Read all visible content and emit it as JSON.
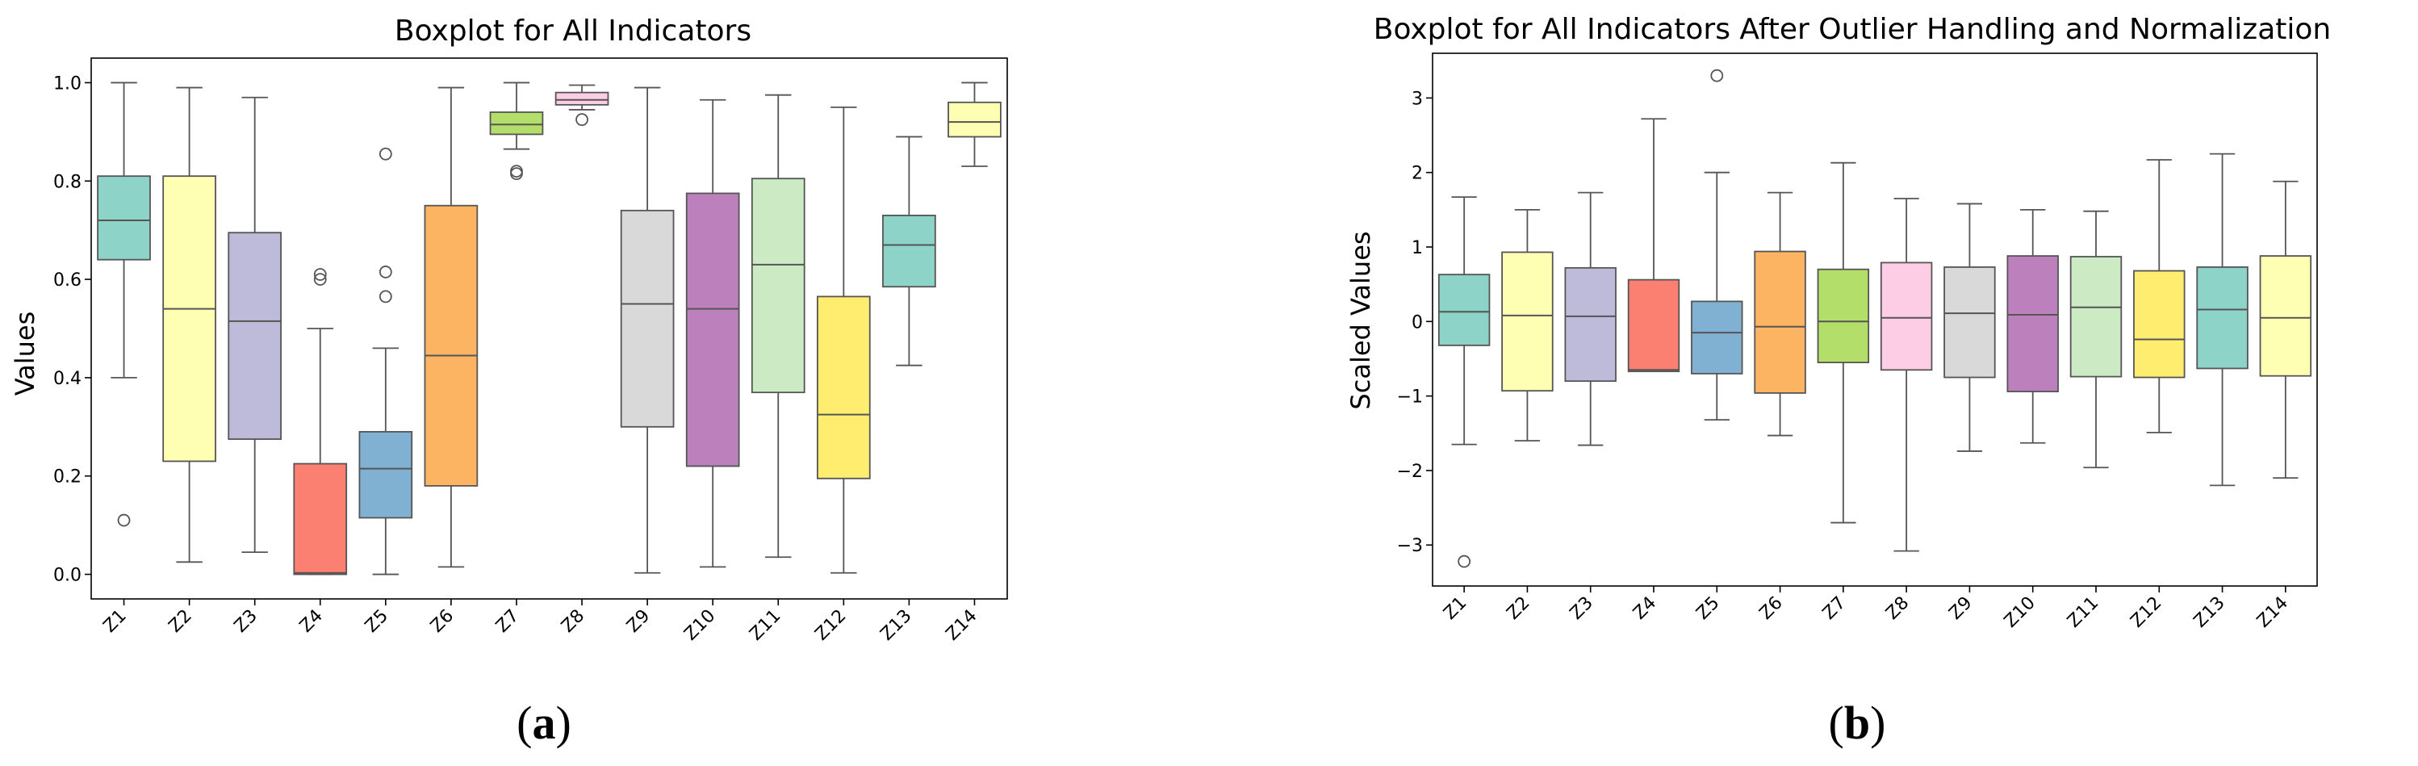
{
  "figure": {
    "panel_labels": [
      {
        "open": "(",
        "letter": "a",
        "close": ")"
      },
      {
        "open": "(",
        "letter": "b",
        "close": ")"
      }
    ]
  },
  "chart_data": [
    {
      "type": "boxplot",
      "title": "Boxplot for All Indicators",
      "xlabel": "",
      "ylabel": "Values",
      "ylim": [
        -0.05,
        1.05
      ],
      "yticks": [
        0.0,
        0.2,
        0.4,
        0.6,
        0.8,
        1.0
      ],
      "ytick_labels": [
        "0.0",
        "0.2",
        "0.4",
        "0.6",
        "0.8",
        "1.0"
      ],
      "grid": false,
      "categories": [
        "Z1",
        "Z2",
        "Z3",
        "Z4",
        "Z5",
        "Z6",
        "Z7",
        "Z8",
        "Z9",
        "Z10",
        "Z11",
        "Z12",
        "Z13",
        "Z14"
      ],
      "boxes": [
        {
          "whislo": 0.4,
          "q1": 0.64,
          "med": 0.72,
          "q3": 0.81,
          "whishi": 1.0,
          "fliers": [
            0.11
          ],
          "color": "#8dd3c7"
        },
        {
          "whislo": 0.025,
          "q1": 0.23,
          "med": 0.54,
          "q3": 0.81,
          "whishi": 0.99,
          "fliers": [],
          "color": "#ffffb3"
        },
        {
          "whislo": 0.045,
          "q1": 0.275,
          "med": 0.515,
          "q3": 0.695,
          "whishi": 0.97,
          "fliers": [],
          "color": "#bebada"
        },
        {
          "whislo": 0.0,
          "q1": 0.0,
          "med": 0.003,
          "q3": 0.225,
          "whishi": 0.5,
          "fliers": [
            0.6,
            0.61
          ],
          "color": "#fb8072"
        },
        {
          "whislo": 0.0,
          "q1": 0.115,
          "med": 0.215,
          "q3": 0.29,
          "whishi": 0.46,
          "fliers": [
            0.565,
            0.615,
            0.855
          ],
          "color": "#80b1d3"
        },
        {
          "whislo": 0.015,
          "q1": 0.18,
          "med": 0.445,
          "q3": 0.75,
          "whishi": 0.99,
          "fliers": [],
          "color": "#fdb462"
        },
        {
          "whislo": 0.865,
          "q1": 0.895,
          "med": 0.915,
          "q3": 0.94,
          "whishi": 1.0,
          "fliers": [
            0.815,
            0.82
          ],
          "color": "#b3de69"
        },
        {
          "whislo": 0.945,
          "q1": 0.955,
          "med": 0.965,
          "q3": 0.98,
          "whishi": 0.995,
          "fliers": [
            0.925
          ],
          "color": "#fccde5"
        },
        {
          "whislo": 0.003,
          "q1": 0.3,
          "med": 0.55,
          "q3": 0.74,
          "whishi": 0.99,
          "fliers": [],
          "color": "#d9d9d9"
        },
        {
          "whislo": 0.015,
          "q1": 0.22,
          "med": 0.54,
          "q3": 0.775,
          "whishi": 0.965,
          "fliers": [],
          "color": "#bc80bd"
        },
        {
          "whislo": 0.035,
          "q1": 0.37,
          "med": 0.63,
          "q3": 0.805,
          "whishi": 0.975,
          "fliers": [],
          "color": "#ccebc5"
        },
        {
          "whislo": 0.003,
          "q1": 0.195,
          "med": 0.325,
          "q3": 0.565,
          "whishi": 0.95,
          "fliers": [],
          "color": "#ffed6f"
        },
        {
          "whislo": 0.425,
          "q1": 0.585,
          "med": 0.67,
          "q3": 0.73,
          "whishi": 0.89,
          "fliers": [],
          "color": "#8dd3c7"
        },
        {
          "whislo": 0.83,
          "q1": 0.89,
          "med": 0.92,
          "q3": 0.96,
          "whishi": 1.0,
          "fliers": [],
          "color": "#ffffb3"
        }
      ]
    },
    {
      "type": "boxplot",
      "title": "Boxplot for All Indicators After Outlier Handling and Normalization",
      "xlabel": "",
      "ylabel": "Scaled Values",
      "ylim": [
        -3.55,
        3.6
      ],
      "yticks": [
        -3,
        -2,
        -1,
        0,
        1,
        2,
        3
      ],
      "ytick_labels": [
        "−3",
        "−2",
        "−1",
        "0",
        "1",
        "2",
        "3"
      ],
      "grid": false,
      "categories": [
        "Z1",
        "Z2",
        "Z3",
        "Z4",
        "Z5",
        "Z6",
        "Z7",
        "Z8",
        "Z9",
        "Z10",
        "Z11",
        "Z12",
        "Z13",
        "Z14"
      ],
      "boxes": [
        {
          "whislo": -1.65,
          "q1": -0.32,
          "med": 0.13,
          "q3": 0.63,
          "whishi": 1.67,
          "fliers": [
            -3.22
          ],
          "color": "#8dd3c7"
        },
        {
          "whislo": -1.6,
          "q1": -0.93,
          "med": 0.08,
          "q3": 0.93,
          "whishi": 1.5,
          "fliers": [],
          "color": "#ffffb3"
        },
        {
          "whislo": -1.66,
          "q1": -0.8,
          "med": 0.07,
          "q3": 0.72,
          "whishi": 1.73,
          "fliers": [],
          "color": "#bebada"
        },
        {
          "whislo": -0.67,
          "q1": -0.67,
          "med": -0.65,
          "q3": 0.56,
          "whishi": 2.72,
          "fliers": [],
          "color": "#fb8072"
        },
        {
          "whislo": -1.32,
          "q1": -0.7,
          "med": -0.15,
          "q3": 0.27,
          "whishi": 2.0,
          "fliers": [
            3.3
          ],
          "color": "#80b1d3"
        },
        {
          "whislo": -1.53,
          "q1": -0.96,
          "med": -0.07,
          "q3": 0.94,
          "whishi": 1.73,
          "fliers": [],
          "color": "#fdb462"
        },
        {
          "whislo": -2.7,
          "q1": -0.55,
          "med": 0.0,
          "q3": 0.7,
          "whishi": 2.13,
          "fliers": [],
          "color": "#b3de69"
        },
        {
          "whislo": -3.08,
          "q1": -0.65,
          "med": 0.05,
          "q3": 0.79,
          "whishi": 1.65,
          "fliers": [],
          "color": "#fccde5"
        },
        {
          "whislo": -1.74,
          "q1": -0.75,
          "med": 0.11,
          "q3": 0.73,
          "whishi": 1.58,
          "fliers": [],
          "color": "#d9d9d9"
        },
        {
          "whislo": -1.63,
          "q1": -0.94,
          "med": 0.09,
          "q3": 0.88,
          "whishi": 1.5,
          "fliers": [],
          "color": "#bc80bd"
        },
        {
          "whislo": -1.96,
          "q1": -0.74,
          "med": 0.19,
          "q3": 0.87,
          "whishi": 1.48,
          "fliers": [],
          "color": "#ccebc5"
        },
        {
          "whislo": -1.49,
          "q1": -0.75,
          "med": -0.24,
          "q3": 0.68,
          "whishi": 2.17,
          "fliers": [],
          "color": "#ffed6f"
        },
        {
          "whislo": -2.2,
          "q1": -0.63,
          "med": 0.16,
          "q3": 0.73,
          "whishi": 2.25,
          "fliers": [],
          "color": "#8dd3c7"
        },
        {
          "whislo": -2.1,
          "q1": -0.73,
          "med": 0.05,
          "q3": 0.88,
          "whishi": 1.88,
          "fliers": [],
          "color": "#ffffb3"
        }
      ]
    }
  ]
}
